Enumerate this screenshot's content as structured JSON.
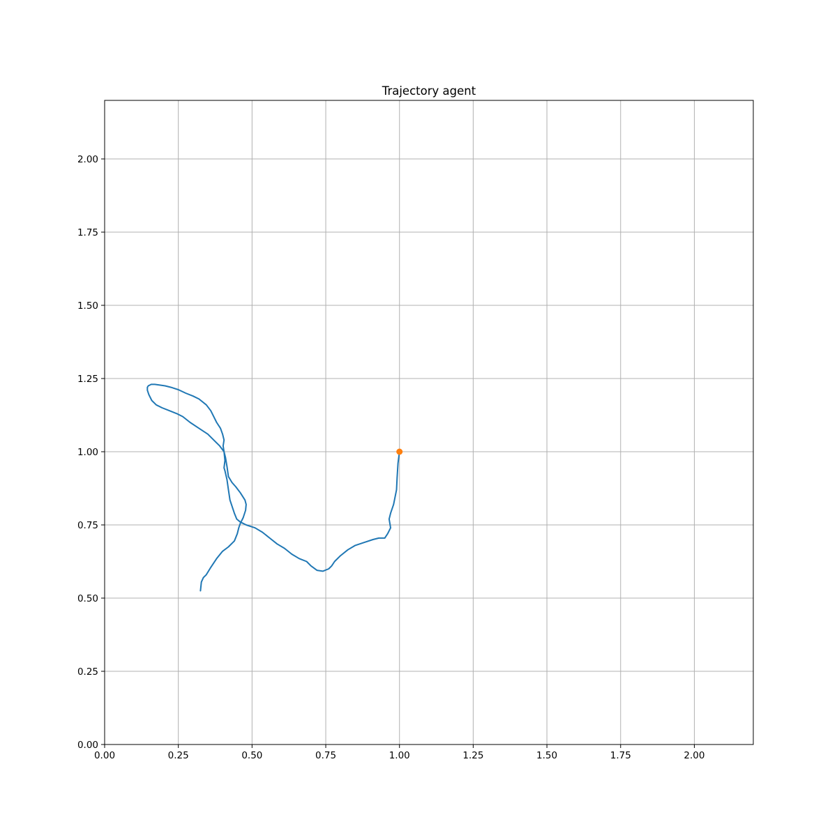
{
  "chart_data": {
    "type": "line",
    "title": "Trajectory agent",
    "xlabel": "",
    "ylabel": "",
    "xlim": [
      0,
      2.2
    ],
    "ylim": [
      0,
      2.2
    ],
    "grid": true,
    "xticks": [
      0,
      0.25,
      0.5,
      0.75,
      1.0,
      1.25,
      1.5,
      1.75,
      2.0
    ],
    "yticks": [
      0,
      0.25,
      0.5,
      0.75,
      1.0,
      1.25,
      1.5,
      1.75,
      2.0
    ],
    "xtick_labels": [
      "0.00",
      "0.25",
      "0.50",
      "0.75",
      "1.00",
      "1.25",
      "1.50",
      "1.75",
      "2.00"
    ],
    "ytick_labels": [
      "0.00",
      "0.25",
      "0.50",
      "0.75",
      "1.00",
      "1.25",
      "1.50",
      "1.75",
      "2.00"
    ],
    "colors": {
      "trajectory": "#1f77b4",
      "point": "#ff7f0e",
      "grid": "#b0b0b0"
    },
    "series": [
      {
        "type": "line",
        "color": "#1f77b4",
        "x": [
          0.325,
          0.328,
          0.335,
          0.345,
          0.36,
          0.38,
          0.4,
          0.42,
          0.44,
          0.45,
          0.455,
          0.46,
          0.47,
          0.478,
          0.48,
          0.476,
          0.46,
          0.445,
          0.432,
          0.42,
          0.415,
          0.41,
          0.405,
          0.39,
          0.37,
          0.35,
          0.32,
          0.29,
          0.265,
          0.245,
          0.22,
          0.195,
          0.175,
          0.16,
          0.15,
          0.145,
          0.145,
          0.148,
          0.158,
          0.17,
          0.185,
          0.205,
          0.225,
          0.25,
          0.275,
          0.3,
          0.32,
          0.345,
          0.36,
          0.37,
          0.38,
          0.393,
          0.4,
          0.405,
          0.402,
          0.405,
          0.408,
          0.405,
          0.408,
          0.415,
          0.42,
          0.425,
          0.44,
          0.448,
          0.46,
          0.48,
          0.51,
          0.535,
          0.56,
          0.585,
          0.61,
          0.635,
          0.66,
          0.685,
          0.7,
          0.72,
          0.74,
          0.76,
          0.77,
          0.78,
          0.8,
          0.825,
          0.85,
          0.88,
          0.91,
          0.93,
          0.95,
          0.96,
          0.97,
          0.965,
          0.97,
          0.98,
          0.985,
          0.99,
          0.992,
          0.995,
          1.0
        ],
        "y": [
          0.525,
          0.555,
          0.57,
          0.58,
          0.605,
          0.635,
          0.66,
          0.675,
          0.695,
          0.72,
          0.74,
          0.755,
          0.775,
          0.8,
          0.82,
          0.835,
          0.86,
          0.88,
          0.895,
          0.915,
          0.95,
          0.98,
          1.0,
          1.02,
          1.04,
          1.06,
          1.08,
          1.1,
          1.12,
          1.13,
          1.14,
          1.15,
          1.16,
          1.175,
          1.195,
          1.21,
          1.22,
          1.225,
          1.23,
          1.23,
          1.228,
          1.225,
          1.22,
          1.212,
          1.2,
          1.19,
          1.18,
          1.16,
          1.14,
          1.12,
          1.1,
          1.08,
          1.06,
          1.04,
          1.02,
          1.0,
          0.97,
          0.945,
          0.935,
          0.905,
          0.87,
          0.835,
          0.79,
          0.77,
          0.76,
          0.75,
          0.74,
          0.725,
          0.705,
          0.685,
          0.67,
          0.65,
          0.635,
          0.625,
          0.61,
          0.595,
          0.592,
          0.6,
          0.61,
          0.625,
          0.645,
          0.665,
          0.68,
          0.69,
          0.7,
          0.705,
          0.705,
          0.72,
          0.74,
          0.77,
          0.79,
          0.82,
          0.845,
          0.87,
          0.91,
          0.96,
          1.0
        ]
      },
      {
        "type": "scatter",
        "color": "#ff7f0e",
        "x": [
          1.0
        ],
        "y": [
          1.0
        ]
      }
    ]
  }
}
